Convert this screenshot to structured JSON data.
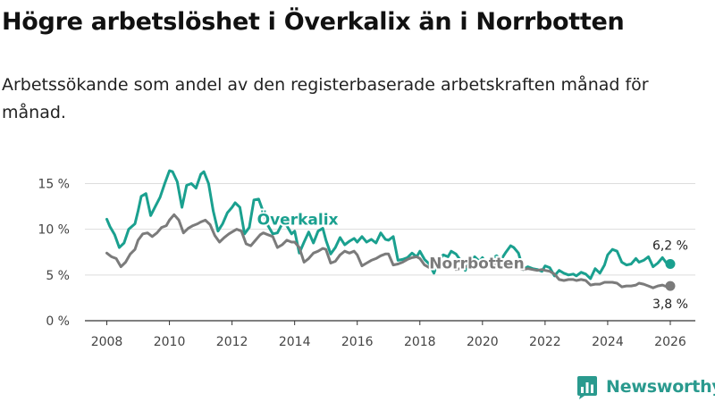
{
  "title": "Högre arbetslöshet i Överkalix än i Norrbotten",
  "subtitle": "Arbetssökande som andel av den registerbaserade arbetskraften månad för månad.",
  "brand": {
    "name": "Newsworthy",
    "color": "#2a9a8e",
    "icon": "newsworthy-logo-icon"
  },
  "chart_data": {
    "type": "line",
    "title": "Högre arbetslöshet i Överkalix än i Norrbotten",
    "xlabel": "",
    "ylabel": "",
    "xlim": [
      2007.3,
      2026.8
    ],
    "ylim": [
      0,
      17
    ],
    "x_ticks": [
      2008,
      2010,
      2012,
      2014,
      2016,
      2018,
      2020,
      2022,
      2024,
      2026
    ],
    "x_tick_labels": [
      "2008",
      "2010",
      "2012",
      "2014",
      "2016",
      "2018",
      "2020",
      "2022",
      "2024",
      "2026"
    ],
    "y_ticks": [
      0,
      5,
      10,
      15
    ],
    "y_tick_labels": [
      "0 %",
      "5 %",
      "10 %",
      "15 %"
    ],
    "grid": true,
    "series": [
      {
        "name": "Överkalix",
        "color": "#1aa08f",
        "end_label": "6,2 %",
        "x": [
          2008.0,
          2008.1,
          2008.25,
          2008.4,
          2008.55,
          2008.7,
          2008.9,
          2009.0,
          2009.1,
          2009.25,
          2009.4,
          2009.55,
          2009.7,
          2009.85,
          2010.0,
          2010.1,
          2010.25,
          2010.4,
          2010.55,
          2010.7,
          2010.85,
          2011.0,
          2011.1,
          2011.25,
          2011.4,
          2011.55,
          2011.7,
          2011.85,
          2012.0,
          2012.1,
          2012.25,
          2012.4,
          2012.55,
          2012.7,
          2012.85,
          2013.0,
          2013.15,
          2013.3,
          2013.45,
          2013.6,
          2013.75,
          2013.9,
          2014.0,
          2014.15,
          2014.3,
          2014.45,
          2014.6,
          2014.75,
          2014.9,
          2015.0,
          2015.15,
          2015.3,
          2015.45,
          2015.6,
          2015.75,
          2015.9,
          2016.0,
          2016.15,
          2016.3,
          2016.45,
          2016.6,
          2016.75,
          2016.9,
          2017.0,
          2017.15,
          2017.3,
          2017.45,
          2017.6,
          2017.75,
          2017.9,
          2018.0,
          2018.15,
          2018.3,
          2018.45,
          2018.6,
          2018.75,
          2018.9,
          2019.0,
          2019.15,
          2019.3,
          2019.45,
          2019.6,
          2019.75,
          2019.9,
          2020.0,
          2020.15,
          2020.3,
          2020.45,
          2020.6,
          2020.75,
          2020.9,
          2021.0,
          2021.15,
          2021.3,
          2021.45,
          2021.6,
          2021.75,
          2021.9,
          2022.0,
          2022.15,
          2022.3,
          2022.45,
          2022.6,
          2022.75,
          2022.9,
          2023.0,
          2023.15,
          2023.3,
          2023.45,
          2023.6,
          2023.75,
          2023.9,
          2024.0,
          2024.15,
          2024.3,
          2024.45,
          2024.6,
          2024.75,
          2024.9,
          2025.0,
          2025.15,
          2025.3,
          2025.45,
          2025.6,
          2025.75,
          2025.9,
          2026.0
        ],
        "values": [
          11.1,
          10.3,
          9.4,
          8.0,
          8.5,
          10.0,
          10.6,
          12.0,
          13.6,
          13.9,
          11.5,
          12.5,
          13.5,
          15.0,
          16.4,
          16.3,
          15.2,
          12.4,
          14.8,
          15.0,
          14.5,
          16.0,
          16.3,
          15.0,
          12.0,
          9.8,
          10.6,
          11.8,
          12.4,
          12.9,
          12.4,
          9.5,
          10.2,
          13.2,
          13.3,
          11.9,
          10.4,
          9.5,
          9.6,
          10.6,
          10.4,
          9.5,
          9.8,
          7.4,
          8.6,
          9.7,
          8.5,
          9.8,
          10.1,
          8.8,
          7.3,
          8.0,
          9.1,
          8.3,
          8.7,
          9.0,
          8.6,
          9.2,
          8.6,
          8.9,
          8.5,
          9.6,
          8.9,
          8.8,
          9.2,
          6.6,
          6.7,
          6.9,
          7.4,
          7.0,
          7.6,
          6.7,
          6.2,
          5.2,
          6.6,
          7.2,
          7.0,
          7.6,
          7.3,
          6.6,
          5.5,
          6.6,
          7.0,
          6.5,
          6.9,
          6.1,
          6.8,
          7.1,
          6.7,
          7.5,
          8.2,
          8.0,
          7.4,
          5.6,
          5.9,
          5.7,
          5.6,
          5.4,
          6.0,
          5.8,
          4.9,
          5.5,
          5.2,
          5.0,
          5.1,
          4.9,
          5.3,
          5.1,
          4.6,
          5.7,
          5.2,
          6.1,
          7.2,
          7.8,
          7.6,
          6.4,
          6.1,
          6.2,
          6.8,
          6.4,
          6.6,
          7.0,
          5.9,
          6.3,
          6.9,
          6.2,
          6.2
        ]
      },
      {
        "name": "Norrbotten",
        "color": "#7b7b7b",
        "end_label": "3,8 %",
        "x": [
          2008.0,
          2008.15,
          2008.3,
          2008.45,
          2008.6,
          2008.75,
          2008.9,
          2009.0,
          2009.15,
          2009.3,
          2009.45,
          2009.6,
          2009.75,
          2009.9,
          2010.0,
          2010.15,
          2010.3,
          2010.45,
          2010.6,
          2010.75,
          2010.9,
          2011.0,
          2011.15,
          2011.3,
          2011.45,
          2011.6,
          2011.75,
          2011.9,
          2012.0,
          2012.15,
          2012.3,
          2012.45,
          2012.6,
          2012.75,
          2012.9,
          2013.0,
          2013.15,
          2013.3,
          2013.45,
          2013.6,
          2013.75,
          2013.9,
          2014.0,
          2014.15,
          2014.3,
          2014.45,
          2014.6,
          2014.75,
          2014.9,
          2015.0,
          2015.15,
          2015.3,
          2015.45,
          2015.6,
          2015.75,
          2015.9,
          2016.0,
          2016.15,
          2016.3,
          2016.45,
          2016.6,
          2016.75,
          2016.9,
          2017.0,
          2017.15,
          2017.3,
          2017.45,
          2017.6,
          2017.75,
          2017.9,
          2018.0,
          2018.15,
          2018.3,
          2018.45,
          2018.6,
          2018.75,
          2018.9,
          2019.0,
          2019.15,
          2019.3,
          2019.45,
          2019.6,
          2019.75,
          2019.9,
          2020.0,
          2020.15,
          2020.3,
          2020.45,
          2020.6,
          2020.75,
          2020.9,
          2021.0,
          2021.15,
          2021.3,
          2021.45,
          2021.6,
          2021.75,
          2021.9,
          2022.0,
          2022.15,
          2022.3,
          2022.45,
          2022.6,
          2022.75,
          2022.9,
          2023.0,
          2023.15,
          2023.3,
          2023.45,
          2023.6,
          2023.75,
          2023.9,
          2024.0,
          2024.15,
          2024.3,
          2024.45,
          2024.6,
          2024.75,
          2024.9,
          2025.0,
          2025.15,
          2025.3,
          2025.45,
          2025.6,
          2025.75,
          2025.9,
          2026.0
        ],
        "values": [
          7.4,
          7.0,
          6.8,
          5.9,
          6.4,
          7.3,
          7.8,
          8.8,
          9.5,
          9.6,
          9.2,
          9.6,
          10.2,
          10.4,
          11.0,
          11.6,
          11.0,
          9.6,
          10.1,
          10.4,
          10.6,
          10.8,
          11.0,
          10.5,
          9.3,
          8.6,
          9.1,
          9.5,
          9.7,
          10.0,
          9.8,
          8.4,
          8.2,
          8.8,
          9.4,
          9.6,
          9.4,
          9.2,
          8.0,
          8.3,
          8.8,
          8.6,
          8.6,
          8.0,
          6.4,
          6.8,
          7.4,
          7.6,
          7.9,
          7.8,
          6.3,
          6.5,
          7.2,
          7.6,
          7.4,
          7.6,
          7.2,
          6.0,
          6.3,
          6.6,
          6.8,
          7.1,
          7.3,
          7.3,
          6.1,
          6.2,
          6.4,
          6.7,
          6.9,
          7.0,
          6.8,
          6.1,
          5.8,
          5.9,
          6.1,
          6.2,
          6.2,
          6.3,
          5.6,
          5.7,
          5.9,
          6.0,
          6.1,
          6.1,
          5.9,
          5.9,
          6.0,
          6.1,
          6.1,
          6.0,
          5.9,
          5.8,
          5.7,
          5.6,
          5.7,
          5.6,
          5.5,
          5.6,
          5.5,
          5.4,
          5.1,
          4.5,
          4.4,
          4.5,
          4.5,
          4.4,
          4.5,
          4.4,
          3.9,
          4.0,
          4.0,
          4.2,
          4.2,
          4.2,
          4.1,
          3.7,
          3.8,
          3.8,
          3.9,
          4.1,
          4.0,
          3.8,
          3.6,
          3.8,
          3.9,
          3.7,
          3.8
        ]
      }
    ]
  }
}
